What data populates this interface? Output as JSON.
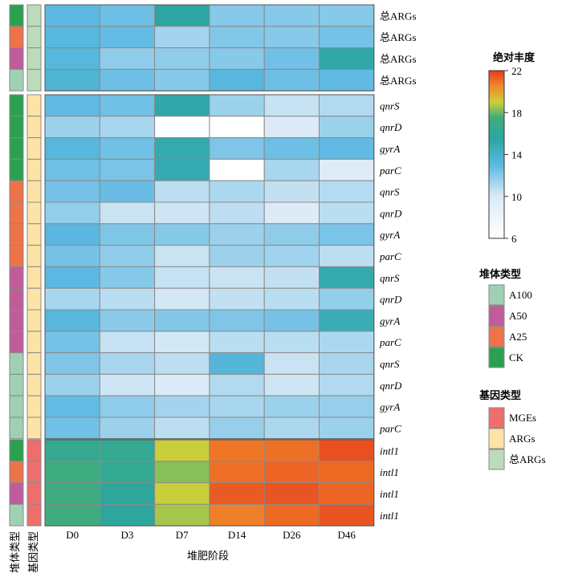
{
  "chart_data": {
    "type": "heatmap",
    "xlabel": "堆肥阶段",
    "columns": [
      "D0",
      "D3",
      "D7",
      "D14",
      "D26",
      "D46"
    ],
    "row_annotations": {
      "pile_type_label": "堆体类型",
      "gene_type_label": "基因类型"
    },
    "colorbar": {
      "title": "绝对丰度",
      "min": 6,
      "max": 22,
      "ticks": [
        6,
        10,
        14,
        18,
        22
      ],
      "stops": [
        {
          "v": 6,
          "c": "#ffffff"
        },
        {
          "v": 10,
          "c": "#dbeaf6"
        },
        {
          "v": 13,
          "c": "#5cb8e2"
        },
        {
          "v": 15.5,
          "c": "#2aa6a2"
        },
        {
          "v": 17.5,
          "c": "#40ac7c"
        },
        {
          "v": 19,
          "c": "#c9cf3a"
        },
        {
          "v": 20.5,
          "c": "#f28a2b"
        },
        {
          "v": 22,
          "c": "#e53b1d"
        }
      ]
    },
    "pile_type_legend": {
      "title": "堆体类型",
      "items": [
        {
          "label": "A100",
          "color": "#9fd0b2"
        },
        {
          "label": "A50",
          "color": "#c15c9b"
        },
        {
          "label": "A25",
          "color": "#ee7348"
        },
        {
          "label": "CK",
          "color": "#2aa14f"
        }
      ]
    },
    "gene_type_legend": {
      "title": "基因类型",
      "items": [
        {
          "label": "MGEs",
          "color": "#ee6e6e"
        },
        {
          "label": "ARGs",
          "color": "#fde3a6"
        },
        {
          "label": "总ARGs",
          "color": "#bcdcb9"
        }
      ]
    },
    "groups": [
      {
        "rows": [
          {
            "label": "总ARGs",
            "italic": false,
            "pile": "CK",
            "gene": "总ARGs",
            "values": [
              13.0,
              12.6,
              15.6,
              12.0,
              12.0,
              12.0
            ]
          },
          {
            "label": "总ARGs",
            "italic": false,
            "pile": "A25",
            "gene": "总ARGs",
            "values": [
              13.2,
              12.8,
              11.3,
              12.1,
              12.0,
              12.4
            ]
          },
          {
            "label": "总ARGs",
            "italic": false,
            "pile": "A50",
            "gene": "总ARGs",
            "values": [
              13.2,
              11.8,
              11.8,
              12.0,
              12.5,
              15.2
            ]
          },
          {
            "label": "总ARGs",
            "italic": false,
            "pile": "A100",
            "gene": "总ARGs",
            "values": [
              13.6,
              12.6,
              12.0,
              13.2,
              12.6,
              12.9
            ]
          }
        ]
      },
      {
        "rows": [
          {
            "label": "qnrS",
            "italic": true,
            "pile": "CK",
            "gene": "ARGs",
            "values": [
              12.9,
              12.5,
              15.2,
              11.5,
              10.5,
              11.0
            ]
          },
          {
            "label": "qnrD",
            "italic": true,
            "pile": "CK",
            "gene": "ARGs",
            "values": [
              11.5,
              11.2,
              6.0,
              6.0,
              10.0,
              11.5
            ]
          },
          {
            "label": "gyrA",
            "italic": true,
            "pile": "CK",
            "gene": "ARGs",
            "values": [
              13.2,
              12.5,
              15.0,
              12.2,
              12.6,
              12.9
            ]
          },
          {
            "label": "parC",
            "italic": true,
            "pile": "CK",
            "gene": "ARGs",
            "values": [
              12.5,
              12.3,
              14.9,
              6.0,
              11.2,
              9.6
            ]
          },
          {
            "label": "qnrS",
            "italic": true,
            "pile": "A25",
            "gene": "ARGs",
            "values": [
              12.4,
              12.7,
              10.7,
              11.1,
              10.6,
              10.9
            ]
          },
          {
            "label": "qnrD",
            "italic": true,
            "pile": "A25",
            "gene": "ARGs",
            "values": [
              11.7,
              10.4,
              10.3,
              10.7,
              9.8,
              10.8
            ]
          },
          {
            "label": "gyrA",
            "italic": true,
            "pile": "A25",
            "gene": "ARGs",
            "values": [
              13.1,
              12.2,
              12.0,
              11.5,
              11.8,
              12.3
            ]
          },
          {
            "label": "parC",
            "italic": true,
            "pile": "A25",
            "gene": "ARGs",
            "values": [
              12.4,
              11.8,
              10.4,
              11.5,
              11.4,
              10.7
            ]
          },
          {
            "label": "qnrS",
            "italic": true,
            "pile": "A50",
            "gene": "ARGs",
            "values": [
              13.0,
              12.0,
              10.5,
              10.4,
              10.6,
              15.0
            ]
          },
          {
            "label": "qnrD",
            "italic": true,
            "pile": "A50",
            "gene": "ARGs",
            "values": [
              11.2,
              10.8,
              10.2,
              10.6,
              10.8,
              11.7
            ]
          },
          {
            "label": "gyrA",
            "italic": true,
            "pile": "A50",
            "gene": "ARGs",
            "values": [
              13.2,
              11.9,
              12.1,
              12.2,
              12.4,
              14.7
            ]
          },
          {
            "label": "parC",
            "italic": true,
            "pile": "A50",
            "gene": "ARGs",
            "values": [
              12.4,
              10.5,
              10.2,
              10.8,
              10.8,
              11.1
            ]
          },
          {
            "label": "qnrS",
            "italic": true,
            "pile": "A100",
            "gene": "ARGs",
            "values": [
              12.2,
              11.2,
              10.7,
              13.3,
              10.4,
              11.2
            ]
          },
          {
            "label": "qnrD",
            "italic": true,
            "pile": "A100",
            "gene": "ARGs",
            "values": [
              11.5,
              10.3,
              10.0,
              11.0,
              10.3,
              11.0
            ]
          },
          {
            "label": "gyrA",
            "italic": true,
            "pile": "A100",
            "gene": "ARGs",
            "values": [
              12.8,
              11.8,
              11.3,
              11.2,
              11.5,
              11.6
            ]
          },
          {
            "label": "parC",
            "italic": true,
            "pile": "A100",
            "gene": "ARGs",
            "values": [
              12.5,
              11.5,
              10.7,
              11.6,
              11.1,
              11.5
            ]
          }
        ]
      },
      {
        "rows": [
          {
            "label": "intl1",
            "italic": true,
            "pile": "CK",
            "gene": "MGEs",
            "values": [
              16.5,
              16.4,
              19.0,
              20.9,
              21.0,
              21.6
            ]
          },
          {
            "label": "intl1",
            "italic": true,
            "pile": "A25",
            "gene": "MGEs",
            "values": [
              17.3,
              16.4,
              18.3,
              21.0,
              21.2,
              21.1
            ]
          },
          {
            "label": "intl1",
            "italic": true,
            "pile": "A50",
            "gene": "MGEs",
            "values": [
              17.3,
              15.8,
              19.0,
              21.4,
              21.5,
              21.2
            ]
          },
          {
            "label": "intl1",
            "italic": true,
            "pile": "A100",
            "gene": "MGEs",
            "values": [
              17.4,
              15.8,
              18.6,
              20.7,
              21.1,
              21.5
            ]
          }
        ]
      }
    ]
  }
}
